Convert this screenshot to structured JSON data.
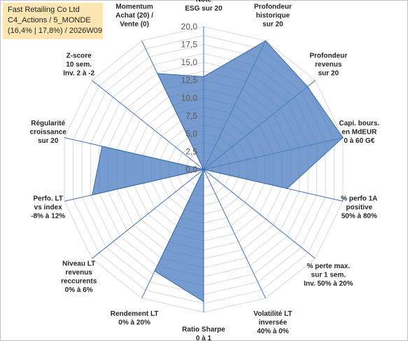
{
  "title": {
    "line1": "Fast Retailing Co Ltd",
    "line2": "C4_Actions / 5_MONDE",
    "line3": "(16,4% | 17,8%) / 2026W09"
  },
  "colors": {
    "fill": "#4f7fc0",
    "fill_opacity": 0.78,
    "stroke": "#3a6aaa",
    "grid": "#d9d9d9",
    "axis": "#4472c4"
  },
  "chart_data": {
    "type": "radar",
    "rmin": 0,
    "rmax": 20,
    "ticks": [
      "0,0",
      "2,5",
      "5,0",
      "7,5",
      "10,0",
      "12,5",
      "15,0",
      "17,5",
      "20,0"
    ],
    "tick_values": [
      0,
      2.5,
      5,
      7.5,
      10,
      12.5,
      15,
      17.5,
      20
    ],
    "grid_rings": 16,
    "axes": [
      {
        "label": [
          "Note",
          "ESG sur 20"
        ],
        "value": 13
      },
      {
        "label": [
          "Profondeur",
          "historique",
          "sur 20"
        ],
        "value": 20
      },
      {
        "label": [
          "Profondeur",
          "revenus",
          "sur 20"
        ],
        "value": 18.6
      },
      {
        "label": [
          "Capi. bours.",
          "en MdEUR",
          "0 à 60 G€"
        ],
        "value": 20
      },
      {
        "label": [
          "% perfo 1A",
          "positive",
          "50% à 80%"
        ],
        "value": 12
      },
      {
        "label": [
          "% perte max.",
          "sur 1 sem.",
          "Inv. 50% à 20%"
        ],
        "value": 0
      },
      {
        "label": [
          "Volatilité LT",
          "inversée",
          "40% à 0%"
        ],
        "value": 0
      },
      {
        "label": [
          "Ratio Sharpe",
          "0 à 1"
        ],
        "value": 18.5
      },
      {
        "label": [
          "Rendement LT",
          "0% à 20%"
        ],
        "value": 15.8
      },
      {
        "label": [
          "Niveau LT",
          "revenus",
          "reccurents",
          "0% à 6%"
        ],
        "value": 0
      },
      {
        "label": [
          "Perfo. LT",
          "vs index",
          "-8% à 12%"
        ],
        "value": 16
      },
      {
        "label": [
          "Régularité",
          "croissance",
          "sur 20"
        ],
        "value": 14.6
      },
      {
        "label": [
          "Z-score",
          "10 sem.",
          "Inv. 2 à -2"
        ],
        "value": 0
      },
      {
        "label": [
          "Momentum",
          "Achat (20) /",
          "Vente (0)"
        ],
        "value": 14.9
      }
    ]
  }
}
